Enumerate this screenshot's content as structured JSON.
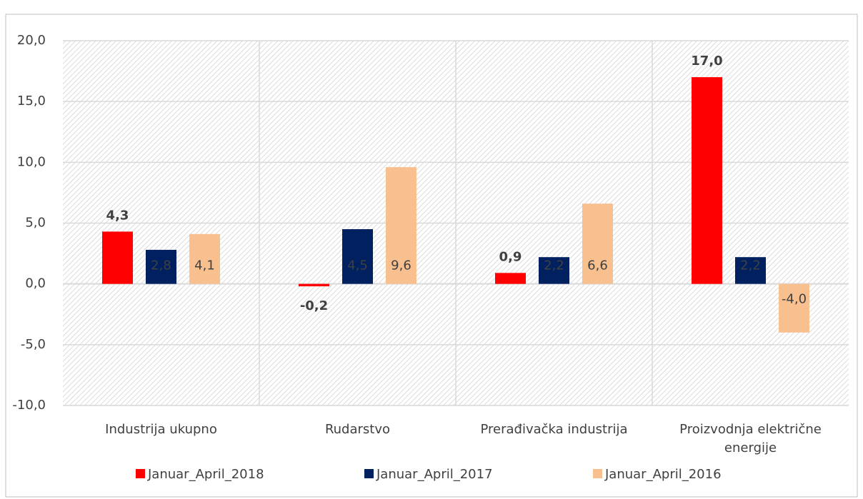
{
  "chart_data": {
    "type": "bar",
    "categories": [
      "Industrija ukupno",
      "Rudarstvo",
      "Prerađivačka industrija",
      "Proizvodnja električne energije"
    ],
    "series": [
      {
        "name": "Januar_April_2018",
        "color": "#ff0000",
        "values": [
          4.3,
          -0.2,
          0.9,
          17.0
        ],
        "value_labels": [
          "4,3",
          "-0,2",
          "0,9",
          "17,0"
        ]
      },
      {
        "name": "Januar_April_2017",
        "color": "#002060",
        "values": [
          2.8,
          4.5,
          2.2,
          2.2
        ],
        "value_labels": [
          "2,8",
          "4,5",
          "2,2",
          "2,2"
        ]
      },
      {
        "name": "Januar_April_2016",
        "color": "#f8bf8f",
        "values": [
          4.1,
          9.6,
          6.6,
          -4.0
        ],
        "value_labels": [
          "4,1",
          "9,6",
          "6,6",
          "-4,0"
        ]
      }
    ],
    "ylim": [
      -10,
      20
    ],
    "yticks": [
      {
        "value": -10,
        "label": "-10,0"
      },
      {
        "value": -5,
        "label": "-5,0"
      },
      {
        "value": 0,
        "label": "0,0"
      },
      {
        "value": 5,
        "label": "5,0"
      },
      {
        "value": 10,
        "label": "10,0"
      },
      {
        "value": 15,
        "label": "15,0"
      },
      {
        "value": 20,
        "label": "20,0"
      }
    ],
    "grid": true,
    "legend": "bottom"
  }
}
